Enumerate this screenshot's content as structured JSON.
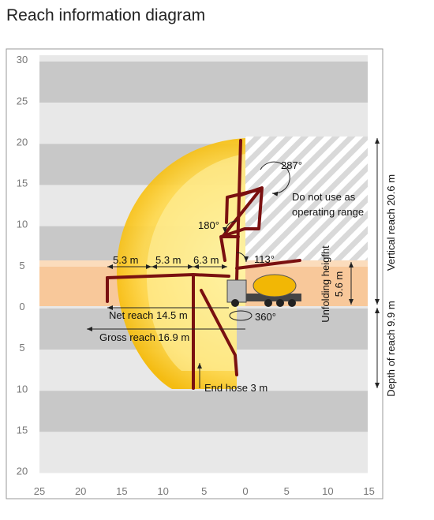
{
  "title": "Reach information diagram",
  "x_axis_labels": [
    "25",
    "20",
    "15",
    "10",
    "5",
    "0",
    "5",
    "10",
    "15"
  ],
  "y_axis_labels": [
    "30",
    "25",
    "20",
    "15",
    "10",
    "5",
    "0",
    "5",
    "10",
    "15",
    "20"
  ],
  "annotations": {
    "angle_top": "287°",
    "forbidden_line1": "Do not use as",
    "forbidden_line2": "operating range",
    "angle_left": "180°",
    "angle_right": "113°",
    "angle_rotation": "360°",
    "section1": "5.3 m",
    "section2": "5.3 m",
    "section3": "6.3 m",
    "net_reach": "Net reach 14.5 m",
    "gross_reach": "Gross reach 16.9 m",
    "end_hose": "End hose 3 m",
    "unfolding_line1": "Unfolding heigfht",
    "unfolding_line2": "5.6 m",
    "vertical_reach": "Vertical reach 20.6 m",
    "depth_reach": "Depth of reach 9.9 m"
  }
}
